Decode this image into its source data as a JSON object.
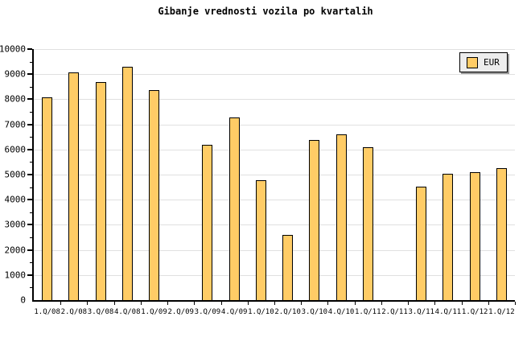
{
  "chart_data": {
    "type": "bar",
    "title": "Gibanje vrednosti vozila po kvartalih",
    "categories": [
      "1.Q/08",
      "2.Q/08",
      "3.Q/08",
      "4.Q/08",
      "1.Q/09",
      "2.Q/09",
      "3.Q/09",
      "4.Q/09",
      "1.Q/10",
      "2.Q/10",
      "3.Q/10",
      "4.Q/10",
      "1.Q/11",
      "2.Q/11",
      "3.Q/11",
      "4.Q/11",
      "1.Q/12",
      "1.Q/12"
    ],
    "series": [
      {
        "name": "EUR",
        "values": [
          8050,
          9050,
          8650,
          9250,
          8330,
          null,
          6150,
          7250,
          4730,
          2550,
          6350,
          6560,
          6050,
          null,
          4500,
          5000,
          5060,
          5240
        ]
      }
    ],
    "xlabel": "",
    "ylabel": "",
    "ylim": [
      0,
      10000
    ],
    "y_major_step": 1000,
    "y_minor_step": 500,
    "y_tick_labels": [
      "0",
      "1000",
      "2000",
      "3000",
      "4000",
      "5000",
      "6000",
      "7000",
      "8000",
      "9000",
      "10000"
    ],
    "grid": "horizontal-major",
    "legend": {
      "label": "EUR",
      "position": "top-right"
    },
    "colors": {
      "bar_fill": "#FFCC66",
      "bar_border": "#000000",
      "grid": "#E0E0E0",
      "axis": "#000000",
      "background": "#FFFFFF",
      "legend_bg": "#EDEDED",
      "legend_border": "#000000",
      "legend_shadow": "#999999",
      "text": "#000000"
    }
  }
}
